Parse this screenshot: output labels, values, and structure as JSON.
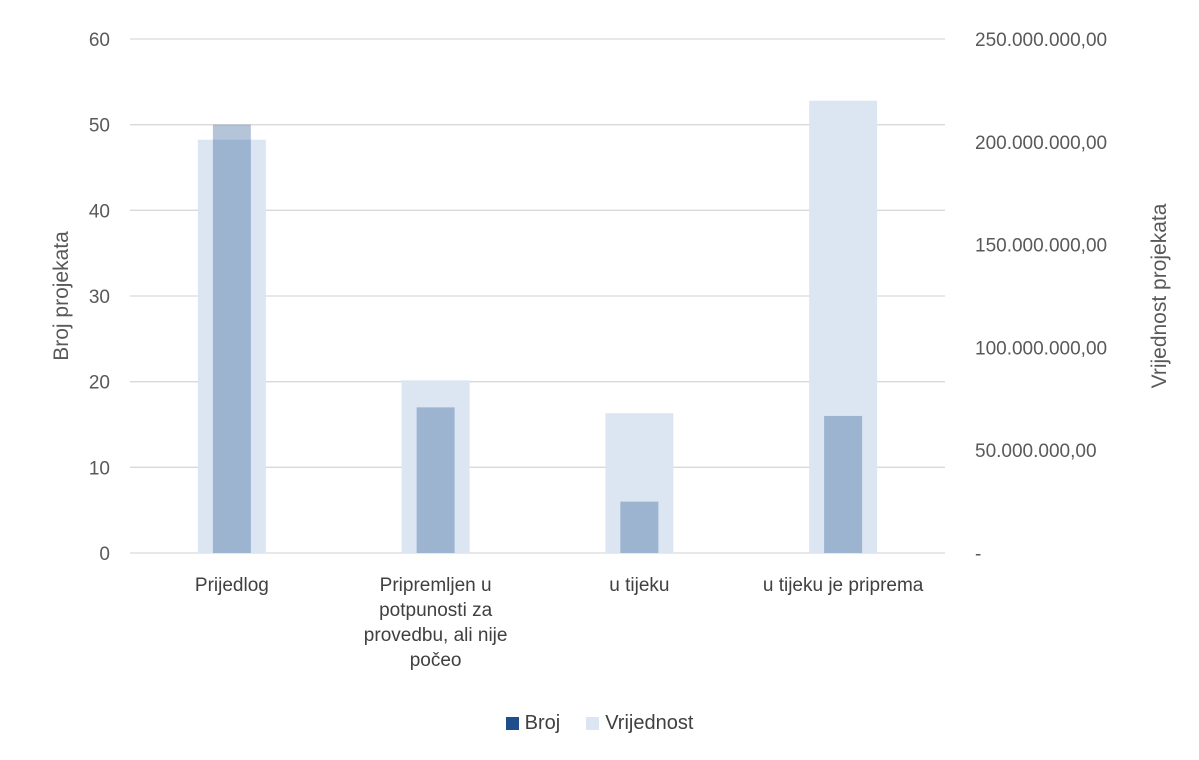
{
  "chart_data": {
    "type": "bar",
    "categories": [
      [
        "Prijedlog"
      ],
      [
        "Pripremljen u",
        "potpunosti za",
        "provedbu, ali nije",
        "počeo"
      ],
      [
        "u tijeku"
      ],
      [
        "u tijeku je priprema"
      ]
    ],
    "series": [
      {
        "name": "Broj",
        "axis": "left",
        "color": "#1f4e8c",
        "values": [
          50,
          17,
          6,
          16
        ]
      },
      {
        "name": "Vrijednost",
        "axis": "right",
        "color": "#dce6f2",
        "values": [
          201000000,
          84000000,
          68000000,
          220000000
        ]
      }
    ],
    "ylabel": "Broj projekata",
    "y2label": "Vrijednost projekata",
    "ylim": [
      0,
      60
    ],
    "y2lim": [
      0,
      250000000
    ],
    "yticks": [
      0,
      10,
      20,
      30,
      40,
      50,
      60
    ],
    "y2ticks": [
      "-",
      "50.000.000,00",
      "100.000.000,00",
      "150.000.000,00",
      "200.000.000,00",
      "250.000.000,00"
    ],
    "grid": true,
    "legend_position": "bottom"
  }
}
